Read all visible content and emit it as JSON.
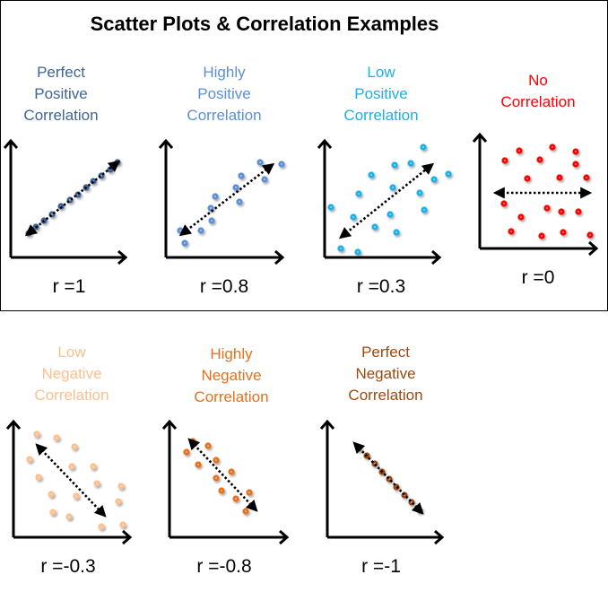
{
  "title": "Scatter Plots & Correlation Examples",
  "chart_data": {
    "type": "scatter",
    "title": "Scatter Plots & Correlation Examples",
    "panels": [
      {
        "id": "perfect-positive",
        "lines": [
          "Perfect",
          "Positive",
          "Correlation"
        ],
        "r_label": "r =1",
        "r": 1,
        "color": "#3f6497",
        "points": [
          [
            20,
            27
          ],
          [
            28,
            34
          ],
          [
            37,
            41
          ],
          [
            46,
            48
          ],
          [
            56,
            57
          ],
          [
            66,
            64
          ],
          [
            75,
            70
          ],
          [
            84,
            78
          ],
          [
            92,
            85
          ],
          [
            101,
            91
          ],
          [
            111,
            98
          ],
          [
            119,
            106
          ]
        ],
        "trend": [
          [
            20,
            27
          ],
          [
            118,
            105
          ]
        ]
      },
      {
        "id": "highly-positive",
        "lines": [
          "Highly",
          "Positive",
          "Correlation"
        ],
        "r_label": "r =0.8",
        "r": 0.8,
        "color": "#5b8fd6",
        "points": [
          [
            16,
            30
          ],
          [
            21,
            16
          ],
          [
            39,
            30
          ],
          [
            51,
            41
          ],
          [
            50,
            55
          ],
          [
            55,
            68
          ],
          [
            82,
            62
          ],
          [
            78,
            78
          ],
          [
            84,
            91
          ],
          [
            105,
            106
          ],
          [
            110,
            87
          ],
          [
            129,
            104
          ]
        ],
        "trend": [
          [
            19,
            27
          ],
          [
            117,
            102
          ]
        ]
      },
      {
        "id": "low-positive",
        "lines": [
          "Low",
          "Positive",
          "Correlation"
        ],
        "r_label": "r =0.3",
        "r": 0.3,
        "color": "#1ab0e8",
        "points": [
          [
            110,
            123
          ],
          [
            78,
            103
          ],
          [
            96,
            105
          ],
          [
            52,
            92
          ],
          [
            122,
            87
          ],
          [
            138,
            93
          ],
          [
            76,
            78
          ],
          [
            38,
            71
          ],
          [
            106,
            72
          ],
          [
            7,
            56
          ],
          [
            32,
            45
          ],
          [
            73,
            48
          ],
          [
            111,
            53
          ],
          [
            56,
            34
          ],
          [
            80,
            28
          ],
          [
            18,
            10
          ],
          [
            37,
            6
          ]
        ],
        "trend": [
          [
            20,
            24
          ],
          [
            118,
            102
          ]
        ]
      },
      {
        "id": "no-correlation",
        "lines": [
          "No",
          "Correlation"
        ],
        "r_label": "r =0",
        "r": 0,
        "color": "#ff0000",
        "points": [
          [
            44,
            109
          ],
          [
            81,
            113
          ],
          [
            107,
            108
          ],
          [
            28,
            98
          ],
          [
            67,
            99
          ],
          [
            107,
            94
          ],
          [
            53,
            78
          ],
          [
            89,
            79
          ],
          [
            119,
            79
          ],
          [
            27,
            50
          ],
          [
            75,
            45
          ],
          [
            91,
            41
          ],
          [
            110,
            41
          ],
          [
            46,
            35
          ],
          [
            35,
            19
          ],
          [
            69,
            14
          ],
          [
            93,
            18
          ],
          [
            123,
            15
          ]
        ],
        "trend": [
          [
            20,
            62
          ],
          [
            120,
            62
          ]
        ]
      },
      {
        "id": "low-negative",
        "lines": [
          "Low",
          "Negative",
          "Correlation"
        ],
        "r_label": "r =-0.3",
        "r": -0.3,
        "color": "#fbc08e",
        "points": [
          [
            26,
            115
          ],
          [
            48,
            111
          ],
          [
            68,
            101
          ],
          [
            18,
            87
          ],
          [
            65,
            79
          ],
          [
            89,
            79
          ],
          [
            28,
            67
          ],
          [
            93,
            60
          ],
          [
            120,
            57
          ],
          [
            42,
            48
          ],
          [
            70,
            46
          ],
          [
            117,
            40
          ],
          [
            44,
            28
          ],
          [
            62,
            23
          ],
          [
            98,
            12
          ],
          [
            122,
            14
          ]
        ],
        "trend": [
          [
            28,
            101
          ],
          [
            100,
            26
          ]
        ]
      },
      {
        "id": "highly-negative",
        "lines": [
          "Highly",
          "Negative",
          "Correlation"
        ],
        "r_label": "r =-0.8",
        "r": -0.8,
        "color": "#e8701a",
        "points": [
          [
            26,
            107
          ],
          [
            43,
            102
          ],
          [
            19,
            95
          ],
          [
            52,
            86
          ],
          [
            32,
            81
          ],
          [
            69,
            73
          ],
          [
            52,
            66
          ],
          [
            58,
            52
          ],
          [
            89,
            50
          ],
          [
            74,
            43
          ],
          [
            85,
            29
          ]
        ],
        "trend": [
          [
            24,
            107
          ],
          [
            95,
            32
          ]
        ]
      },
      {
        "id": "perfect-negative",
        "lines": [
          "Perfect",
          "Negative",
          "Correlation"
        ],
        "r_label": "r =-1",
        "r": -1,
        "color": "#9c4a10",
        "points": [
          [
            35,
            99
          ],
          [
            44,
            91
          ],
          [
            53,
            82
          ],
          [
            61,
            73
          ],
          [
            69,
            65
          ],
          [
            77,
            56
          ],
          [
            86,
            47
          ],
          [
            94,
            39
          ],
          [
            103,
            30
          ]
        ],
        "trend": [
          [
            32,
            103
          ],
          [
            104,
            29
          ]
        ]
      }
    ]
  }
}
